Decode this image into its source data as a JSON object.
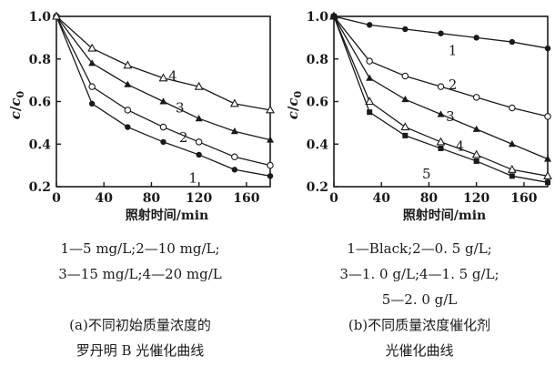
{
  "y_axis_label": {
    "main": "c",
    "sep": "/",
    "sym": "c",
    "sub": "0"
  },
  "chart_data": [
    {
      "type": "line",
      "xlabel": "照射时间/min",
      "xlim": [
        0,
        180
      ],
      "ylim": [
        0.2,
        1.0
      ],
      "xticks": [
        "0",
        "40",
        "80",
        "120",
        "160"
      ],
      "yticks": [
        "0.2",
        "0.4",
        "0.6",
        "0.8",
        "1.0"
      ],
      "x": [
        0,
        30,
        60,
        90,
        120,
        150,
        180
      ],
      "series": [
        {
          "name": "1",
          "marker": "filled-circle",
          "values": [
            1.0,
            0.59,
            0.48,
            0.41,
            0.35,
            0.28,
            0.25
          ]
        },
        {
          "name": "2",
          "marker": "open-circle",
          "values": [
            1.0,
            0.67,
            0.56,
            0.48,
            0.41,
            0.34,
            0.3
          ]
        },
        {
          "name": "3",
          "marker": "filled-triangle",
          "values": [
            1.0,
            0.78,
            0.68,
            0.6,
            0.52,
            0.46,
            0.42
          ]
        },
        {
          "name": "4",
          "marker": "open-triangle",
          "values": [
            1.0,
            0.85,
            0.77,
            0.71,
            0.67,
            0.59,
            0.56
          ]
        }
      ],
      "series_labels": [
        {
          "text": "1",
          "x": 115,
          "y": 0.24
        },
        {
          "text": "2",
          "x": 107,
          "y": 0.43
        },
        {
          "text": "3",
          "x": 104,
          "y": 0.57
        },
        {
          "text": "4",
          "x": 98,
          "y": 0.72
        }
      ]
    },
    {
      "type": "line",
      "xlabel": "照射时间/min",
      "xlim": [
        0,
        180
      ],
      "ylim": [
        0.2,
        1.0
      ],
      "xticks": [
        "0",
        "40",
        "80",
        "120",
        "160"
      ],
      "yticks": [
        "0.2",
        "0.4",
        "0.6",
        "0.8",
        "1.0"
      ],
      "x": [
        0,
        30,
        60,
        90,
        120,
        150,
        180
      ],
      "series": [
        {
          "name": "1",
          "marker": "filled-circle",
          "values": [
            1.0,
            0.96,
            0.94,
            0.92,
            0.9,
            0.88,
            0.85
          ]
        },
        {
          "name": "2",
          "marker": "open-circle",
          "values": [
            1.0,
            0.79,
            0.72,
            0.67,
            0.62,
            0.57,
            0.53
          ]
        },
        {
          "name": "3",
          "marker": "filled-triangle",
          "values": [
            1.0,
            0.71,
            0.61,
            0.54,
            0.47,
            0.4,
            0.33
          ]
        },
        {
          "name": "4",
          "marker": "open-triangle",
          "values": [
            1.0,
            0.6,
            0.48,
            0.41,
            0.35,
            0.28,
            0.25
          ]
        },
        {
          "name": "5",
          "marker": "filled-square",
          "values": [
            1.0,
            0.55,
            0.44,
            0.38,
            0.32,
            0.25,
            0.22
          ]
        }
      ],
      "series_labels": [
        {
          "text": "1",
          "x": 100,
          "y": 0.84
        },
        {
          "text": "2",
          "x": 100,
          "y": 0.68
        },
        {
          "text": "3",
          "x": 98,
          "y": 0.53
        },
        {
          "text": "4",
          "x": 106,
          "y": 0.39
        },
        {
          "text": "5",
          "x": 78,
          "y": 0.26
        }
      ]
    }
  ],
  "captions": [
    {
      "legend": [
        "1—5 mg/L;2—10 mg/L;",
        "3—15 mg/L;4—20 mg/L"
      ],
      "title": [
        "(a)不同初始质量浓度的",
        "罗丹明 B 光催化曲线"
      ]
    },
    {
      "legend": [
        "1—Black;2—0. 5 g/L;",
        "3—1. 0 g/L;4—1. 5 g/L;",
        "5—2. 0 g/L"
      ],
      "title": [
        "(b)不同质量浓度催化剂",
        "光催化曲线"
      ]
    }
  ]
}
